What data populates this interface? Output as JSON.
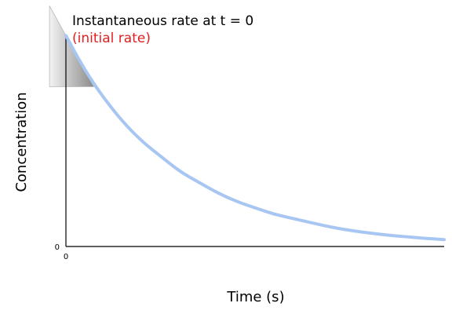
{
  "chart_data": {
    "type": "line",
    "title": "Instantaneous rate at t = 0",
    "subtitle": "(initial rate)",
    "xlabel": "Time (s)",
    "ylabel": "Concentration",
    "x_tick_labels": [
      "0"
    ],
    "y_tick_labels": [
      "0"
    ],
    "xlim": [
      0,
      10
    ],
    "ylim": [
      0,
      1
    ],
    "grid": false,
    "series": [
      {
        "x": [
          0,
          0.5,
          1,
          1.5,
          2,
          2.5,
          3,
          3.5,
          4,
          4.5,
          5,
          5.5,
          6,
          6.5,
          7,
          7.5,
          8,
          8.5,
          9,
          9.5,
          10
        ],
        "y": [
          0.98,
          0.82,
          0.69,
          0.58,
          0.49,
          0.42,
          0.35,
          0.3,
          0.25,
          0.21,
          0.18,
          0.15,
          0.13,
          0.11,
          0.09,
          0.075,
          0.063,
          0.053,
          0.045,
          0.038,
          0.032
        ]
      }
    ],
    "tangent_at": 0
  },
  "colors": {
    "curve": "#a8c6f2",
    "axis": "#000000",
    "subtitle": "#e02020",
    "tangent_light": "#f3f3f3",
    "tangent_dark": "#8a8a8a"
  }
}
